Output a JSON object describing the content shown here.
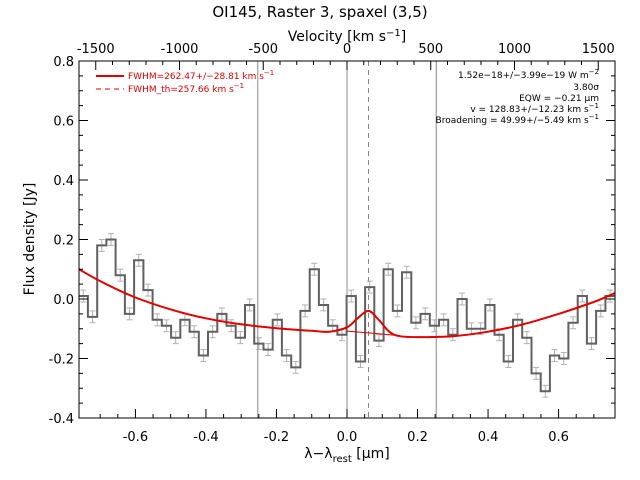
{
  "chart_data": {
    "type": "line",
    "title": "OI145, Raster 3, spaxel (3,5)",
    "xlabel_main": "λ−λ",
    "xlabel_sub": "rest",
    "xlabel_unit": " [μm]",
    "xlabel_top": "Velocity [km s",
    "xlabel_top_sup": "−1",
    "xlabel_top_end": "]",
    "ylabel": "Flux density [Jy]",
    "xlim": [
      -0.76,
      0.76
    ],
    "ylim": [
      -0.4,
      0.8
    ],
    "top_xlim": [
      -1600,
      1600
    ],
    "x_ticks": [
      "-0.6",
      "-0.4",
      "-0.2",
      "0.0",
      "0.2",
      "0.4",
      "0.6"
    ],
    "y_ticks": [
      "-0.4",
      "-0.2",
      "0.0",
      "0.2",
      "0.4",
      "0.6",
      "0.8"
    ],
    "top_ticks": [
      "-1500",
      "-1000",
      "-500",
      "0",
      "500",
      "1000",
      "1500"
    ],
    "vertical_lines": [
      {
        "x": -0.253,
        "style": "solid"
      },
      {
        "x": 0.0,
        "style": "solid"
      },
      {
        "x": 0.061,
        "style": "dashed"
      },
      {
        "x": 0.253,
        "style": "solid"
      }
    ],
    "legend": [
      {
        "label": "FWHM=262.47+/−28.81 km s",
        "sup": "−1",
        "style": "solid",
        "color": "#e00000"
      },
      {
        "label": "FWHM_th=257.66 km s",
        "sup": "−1",
        "style": "dashed",
        "color": "#e00000"
      }
    ],
    "annotations": [
      {
        "text": "1.52e−18+/−3.99e−19 W m",
        "sup": "−2"
      },
      {
        "text": "3.80σ",
        "sup": ""
      },
      {
        "text": "EQW = −0.21 μm",
        "sup": ""
      },
      {
        "text": "v = 128.83+/−12.23 km s",
        "sup": "−1"
      },
      {
        "text": "Broadening = 49.99+/−5.49 km s",
        "sup": "−1"
      }
    ],
    "series": [
      {
        "style": "step",
        "color": "#606060",
        "bin_width": 0.0262,
        "x": [
          -0.7478,
          -0.7216,
          -0.6954,
          -0.6692,
          -0.643,
          -0.6168,
          -0.5906,
          -0.5644,
          -0.5382,
          -0.512,
          -0.4858,
          -0.4596,
          -0.4334,
          -0.4072,
          -0.381,
          -0.3548,
          -0.3286,
          -0.3024,
          -0.2762,
          -0.25,
          -0.2238,
          -0.1976,
          -0.1714,
          -0.1452,
          -0.119,
          -0.0928,
          -0.0666,
          -0.0404,
          -0.0142,
          0.012,
          0.0382,
          0.0644,
          0.0906,
          0.1168,
          0.143,
          0.1692,
          0.1954,
          0.2216,
          0.2478,
          0.274,
          0.3002,
          0.3264,
          0.3528,
          0.379,
          0.4052,
          0.4314,
          0.4576,
          0.4838,
          0.51,
          0.5362,
          0.5624,
          0.5886,
          0.6148,
          0.641,
          0.6672,
          0.6934,
          0.7196,
          0.7458
        ],
        "values": [
          0.01,
          -0.06,
          0.18,
          0.2,
          0.08,
          -0.05,
          0.13,
          0.03,
          -0.07,
          -0.09,
          -0.13,
          -0.07,
          -0.11,
          -0.19,
          -0.11,
          -0.05,
          -0.09,
          -0.13,
          -0.02,
          -0.15,
          -0.17,
          -0.07,
          -0.19,
          -0.23,
          -0.04,
          0.1,
          -0.02,
          -0.09,
          -0.12,
          0.01,
          -0.21,
          0.04,
          -0.14,
          0.1,
          -0.04,
          0.09,
          -0.08,
          -0.05,
          -0.09,
          -0.07,
          -0.12,
          0.0,
          -0.1,
          -0.1,
          -0.02,
          -0.12,
          -0.21,
          -0.07,
          -0.13,
          -0.25,
          -0.31,
          -0.19,
          -0.2,
          -0.08,
          0.01,
          -0.15,
          -0.04,
          0.01
        ],
        "errors": [
          0.02,
          0.02,
          0.02,
          0.02,
          0.02,
          0.02,
          0.02,
          0.02,
          0.02,
          0.02,
          0.02,
          0.02,
          0.02,
          0.02,
          0.02,
          0.02,
          0.02,
          0.02,
          0.02,
          0.02,
          0.02,
          0.02,
          0.02,
          0.02,
          0.02,
          0.02,
          0.02,
          0.02,
          0.02,
          0.02,
          0.02,
          0.02,
          0.02,
          0.02,
          0.02,
          0.02,
          0.02,
          0.02,
          0.02,
          0.02,
          0.02,
          0.02,
          0.02,
          0.02,
          0.02,
          0.02,
          0.02,
          0.02,
          0.02,
          0.02,
          0.02,
          0.02,
          0.02,
          0.02,
          0.02,
          0.02,
          0.02,
          0.02
        ]
      },
      {
        "style": "smooth",
        "color": "#e00000",
        "x": [
          -0.76,
          -0.7,
          -0.6,
          -0.5,
          -0.4,
          -0.3,
          -0.2,
          -0.1,
          -0.05,
          0.0,
          0.03,
          0.061,
          0.09,
          0.12,
          0.15,
          0.2,
          0.3,
          0.4,
          0.5,
          0.6,
          0.7,
          0.76
        ],
        "values": [
          0.1,
          0.06,
          0.005,
          -0.035,
          -0.065,
          -0.085,
          -0.098,
          -0.107,
          -0.11,
          -0.095,
          -0.065,
          -0.04,
          -0.07,
          -0.11,
          -0.125,
          -0.128,
          -0.125,
          -0.11,
          -0.085,
          -0.05,
          -0.01,
          0.02
        ]
      },
      {
        "style": "thin",
        "color": "#e00000",
        "x": [
          0.0,
          0.03,
          0.061,
          0.09,
          0.12,
          0.15
        ],
        "values": [
          -0.108,
          -0.111,
          -0.114,
          -0.117,
          -0.12,
          -0.123
        ]
      }
    ]
  }
}
